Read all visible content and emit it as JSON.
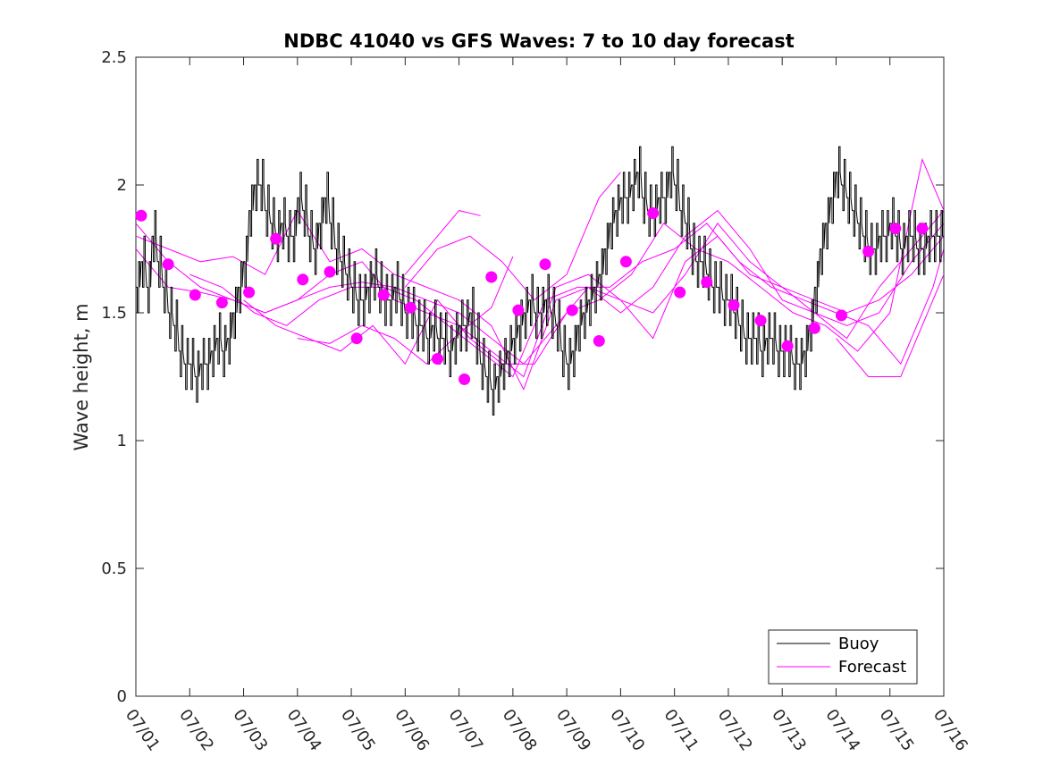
{
  "chart_data": {
    "type": "line",
    "title": "NDBC 41040 vs GFS Waves: 7 to 10 day forecast",
    "xlabel": "",
    "ylabel": "Wave height, m",
    "xlim": [
      0,
      15
    ],
    "ylim": [
      0,
      2.5
    ],
    "x_tick_labels": [
      "07/01",
      "07/02",
      "07/03",
      "07/04",
      "07/05",
      "07/06",
      "07/07",
      "07/08",
      "07/09",
      "07/10",
      "07/11",
      "07/12",
      "07/13",
      "07/14",
      "07/15",
      "07/16"
    ],
    "y_ticks": [
      0,
      0.5,
      1,
      1.5,
      2,
      2.5
    ],
    "y_tick_labels": [
      "0",
      "0.5",
      "1",
      "1.5",
      "2",
      "2.5"
    ],
    "grid": false,
    "legend": {
      "position": "bottom-right",
      "entries": [
        "Buoy",
        "Forecast"
      ]
    },
    "colors": {
      "buoy": "#000000",
      "forecast": "#ff00ff"
    },
    "buoy": {
      "name": "Buoy",
      "x": [
        0.0,
        0.1,
        0.2,
        0.3,
        0.4,
        0.5,
        0.6,
        0.7,
        0.8,
        0.9,
        1.0,
        1.1,
        1.2,
        1.3,
        1.4,
        1.5,
        1.6,
        1.7,
        1.8,
        1.9,
        2.0,
        2.1,
        2.2,
        2.3,
        2.4,
        2.5,
        2.6,
        2.7,
        2.8,
        2.9,
        3.0,
        3.1,
        3.2,
        3.3,
        3.4,
        3.5,
        3.6,
        3.7,
        3.8,
        3.9,
        4.0,
        4.1,
        4.2,
        4.3,
        4.4,
        4.5,
        4.6,
        4.7,
        4.8,
        4.9,
        5.0,
        5.1,
        5.2,
        5.3,
        5.4,
        5.5,
        5.6,
        5.7,
        5.8,
        5.9,
        6.0,
        6.1,
        6.2,
        6.3,
        6.4,
        6.5,
        6.6,
        6.7,
        6.8,
        6.9,
        7.0,
        7.1,
        7.2,
        7.3,
        7.4,
        7.5,
        7.6,
        7.7,
        7.8,
        7.9,
        8.0,
        8.1,
        8.2,
        8.3,
        8.4,
        8.5,
        8.6,
        8.7,
        8.8,
        8.9,
        9.0,
        9.1,
        9.2,
        9.3,
        9.4,
        9.5,
        9.6,
        9.7,
        9.8,
        9.9,
        10.0,
        10.1,
        10.2,
        10.3,
        10.4,
        10.5,
        10.6,
        10.7,
        10.8,
        10.9,
        11.0,
        11.1,
        11.2,
        11.3,
        11.4,
        11.5,
        11.6,
        11.7,
        11.8,
        11.9,
        12.0,
        12.1,
        12.2,
        12.3,
        12.4,
        12.5,
        12.6,
        12.7,
        12.8,
        12.9,
        13.0,
        13.1,
        13.2,
        13.3,
        13.4,
        13.5,
        13.6,
        13.7,
        13.8,
        13.9,
        14.0,
        14.1,
        14.2,
        14.3,
        14.4,
        14.5,
        14.6,
        14.7,
        14.8,
        14.9,
        15.0
      ],
      "values": [
        1.6,
        1.7,
        1.6,
        1.8,
        1.7,
        1.6,
        1.5,
        1.45,
        1.35,
        1.3,
        1.3,
        1.25,
        1.3,
        1.3,
        1.35,
        1.4,
        1.35,
        1.4,
        1.5,
        1.6,
        1.7,
        1.9,
        2.0,
        2.0,
        1.9,
        1.85,
        1.8,
        1.85,
        1.8,
        1.8,
        1.95,
        1.9,
        1.8,
        1.75,
        1.85,
        1.95,
        1.85,
        1.75,
        1.7,
        1.65,
        1.6,
        1.55,
        1.55,
        1.6,
        1.65,
        1.6,
        1.55,
        1.55,
        1.6,
        1.55,
        1.5,
        1.5,
        1.45,
        1.45,
        1.4,
        1.45,
        1.4,
        1.4,
        1.35,
        1.4,
        1.45,
        1.45,
        1.5,
        1.4,
        1.3,
        1.25,
        1.2,
        1.25,
        1.3,
        1.35,
        1.4,
        1.45,
        1.5,
        1.55,
        1.5,
        1.5,
        1.55,
        1.5,
        1.45,
        1.35,
        1.3,
        1.35,
        1.45,
        1.5,
        1.55,
        1.6,
        1.65,
        1.75,
        1.85,
        1.9,
        1.95,
        1.95,
        2.0,
        2.05,
        1.95,
        1.9,
        1.9,
        1.95,
        1.95,
        2.05,
        2.0,
        1.9,
        1.85,
        1.75,
        1.7,
        1.7,
        1.65,
        1.6,
        1.6,
        1.55,
        1.55,
        1.5,
        1.45,
        1.4,
        1.4,
        1.4,
        1.35,
        1.4,
        1.4,
        1.35,
        1.35,
        1.35,
        1.3,
        1.3,
        1.35,
        1.45,
        1.6,
        1.75,
        1.85,
        1.95,
        2.05,
        2.0,
        1.95,
        1.9,
        1.85,
        1.8,
        1.75,
        1.75,
        1.8,
        1.8,
        1.85,
        1.8,
        1.75,
        1.8,
        1.8,
        1.75,
        1.75,
        1.8,
        1.8,
        1.8,
        1.8
      ]
    },
    "forecast_series": [
      {
        "x": [
          0.0,
          0.6,
          1.2,
          1.8,
          2.4,
          3.0,
          3.6,
          4.2,
          4.8,
          5.4,
          6.0,
          6.6,
          7.2,
          7.8,
          8.4,
          9.0,
          9.6,
          10.2,
          10.8,
          11.4,
          12.0,
          12.6,
          13.2,
          13.8,
          14.4,
          15.0
        ],
        "values": [
          1.85,
          1.7,
          1.6,
          1.55,
          1.5,
          1.55,
          1.6,
          1.62,
          1.6,
          1.55,
          1.5,
          1.4,
          1.3,
          1.45,
          1.6,
          1.55,
          1.5,
          1.65,
          1.85,
          1.7,
          1.6,
          1.5,
          1.45,
          1.5,
          1.7,
          1.85
        ]
      },
      {
        "x": [
          0.0,
          0.6,
          1.2,
          1.8,
          2.4,
          3.0,
          3.6,
          4.2,
          4.8,
          5.4,
          6.0,
          6.6,
          7.2,
          7.8,
          8.4,
          9.0,
          9.6,
          10.2,
          10.8,
          11.4,
          12.0,
          12.6,
          13.2,
          13.8,
          14.4,
          15.0
        ],
        "values": [
          1.8,
          1.75,
          1.7,
          1.72,
          1.65,
          1.9,
          1.7,
          1.75,
          1.65,
          1.6,
          1.55,
          1.45,
          1.2,
          1.55,
          1.6,
          1.5,
          1.6,
          1.8,
          1.9,
          1.75,
          1.55,
          1.5,
          1.4,
          1.6,
          1.75,
          1.9
        ]
      },
      {
        "x": [
          0.0,
          0.6,
          1.2,
          1.8,
          2.4,
          3.0,
          3.6,
          4.2,
          4.8,
          5.4,
          6.0,
          6.6,
          7.2,
          7.8,
          8.4,
          9.0,
          9.6,
          10.2,
          10.8,
          11.4,
          12.0,
          12.6,
          13.2,
          13.8,
          14.4,
          15.0
        ],
        "values": [
          1.75,
          1.6,
          1.58,
          1.55,
          1.5,
          1.55,
          1.65,
          1.7,
          1.55,
          1.5,
          1.45,
          1.35,
          1.25,
          1.6,
          1.65,
          1.55,
          1.4,
          1.7,
          1.8,
          1.65,
          1.6,
          1.55,
          1.5,
          1.55,
          1.65,
          1.8
        ]
      },
      {
        "x": [
          1.0,
          1.6,
          2.2,
          2.8,
          3.4,
          4.0,
          4.6,
          5.2,
          5.8,
          6.4,
          7.0,
          7.6,
          8.2,
          8.8,
          9.4,
          10.0,
          10.6,
          11.2,
          11.8,
          12.4,
          13.0,
          13.6,
          14.2,
          14.8,
          15.0
        ],
        "values": [
          1.65,
          1.6,
          1.5,
          1.45,
          1.55,
          1.6,
          1.6,
          1.55,
          1.45,
          1.35,
          1.25,
          1.55,
          1.6,
          1.6,
          1.7,
          1.75,
          1.85,
          1.7,
          1.6,
          1.55,
          1.5,
          1.45,
          1.3,
          1.6,
          1.75
        ]
      },
      {
        "x": [
          2.0,
          2.6,
          3.2,
          3.8,
          4.4,
          5.0,
          5.6,
          6.2,
          6.8,
          7.4,
          8.0,
          8.6,
          9.2,
          9.8,
          10.4,
          11.0,
          11.6,
          12.2,
          12.8,
          13.4,
          14.0,
          14.6,
          15.0
        ],
        "values": [
          1.55,
          1.45,
          1.4,
          1.35,
          1.45,
          1.3,
          1.55,
          1.4,
          1.3,
          1.3,
          1.5,
          1.55,
          1.65,
          1.85,
          1.75,
          1.7,
          1.6,
          1.5,
          1.45,
          1.35,
          1.5,
          2.1,
          1.9
        ]
      },
      {
        "x": [
          3.0,
          3.6,
          4.2,
          4.8,
          5.4,
          6.0,
          6.6,
          7.0
        ],
        "values": [
          1.4,
          1.38,
          1.45,
          1.4,
          1.3,
          1.42,
          1.52,
          1.72
        ]
      },
      {
        "x": [
          5.0,
          5.6,
          6.2,
          6.8,
          7.4,
          8.0,
          8.6,
          9.0
        ],
        "values": [
          1.6,
          1.75,
          1.8,
          1.7,
          1.55,
          1.65,
          1.95,
          2.05
        ]
      },
      {
        "x": [
          5.0,
          5.6,
          6.0,
          6.4
        ],
        "values": [
          1.65,
          1.8,
          1.9,
          1.88
        ]
      },
      {
        "x": [
          13.0,
          13.6,
          14.2,
          14.8,
          15.0
        ],
        "values": [
          1.4,
          1.25,
          1.25,
          1.55,
          1.65
        ]
      }
    ],
    "forecast_markers": {
      "x": [
        0.1,
        0.6,
        1.1,
        1.6,
        2.1,
        2.6,
        3.1,
        3.6,
        4.1,
        4.6,
        5.1,
        5.6,
        6.1,
        6.6,
        7.1,
        7.6,
        8.1,
        8.6,
        9.1,
        9.6,
        10.1,
        10.6,
        11.1,
        11.6,
        12.1,
        12.6,
        13.1,
        13.6,
        14.1,
        14.6
      ],
      "values": [
        1.88,
        1.69,
        1.57,
        1.54,
        1.58,
        1.79,
        1.63,
        1.66,
        1.4,
        1.57,
        1.52,
        1.32,
        1.24,
        1.64,
        1.51,
        1.69,
        1.51,
        1.39,
        1.7,
        1.89,
        1.58,
        1.62,
        1.53,
        1.47,
        1.37,
        1.44,
        1.49,
        1.74,
        1.83,
        1.83
      ]
    }
  }
}
